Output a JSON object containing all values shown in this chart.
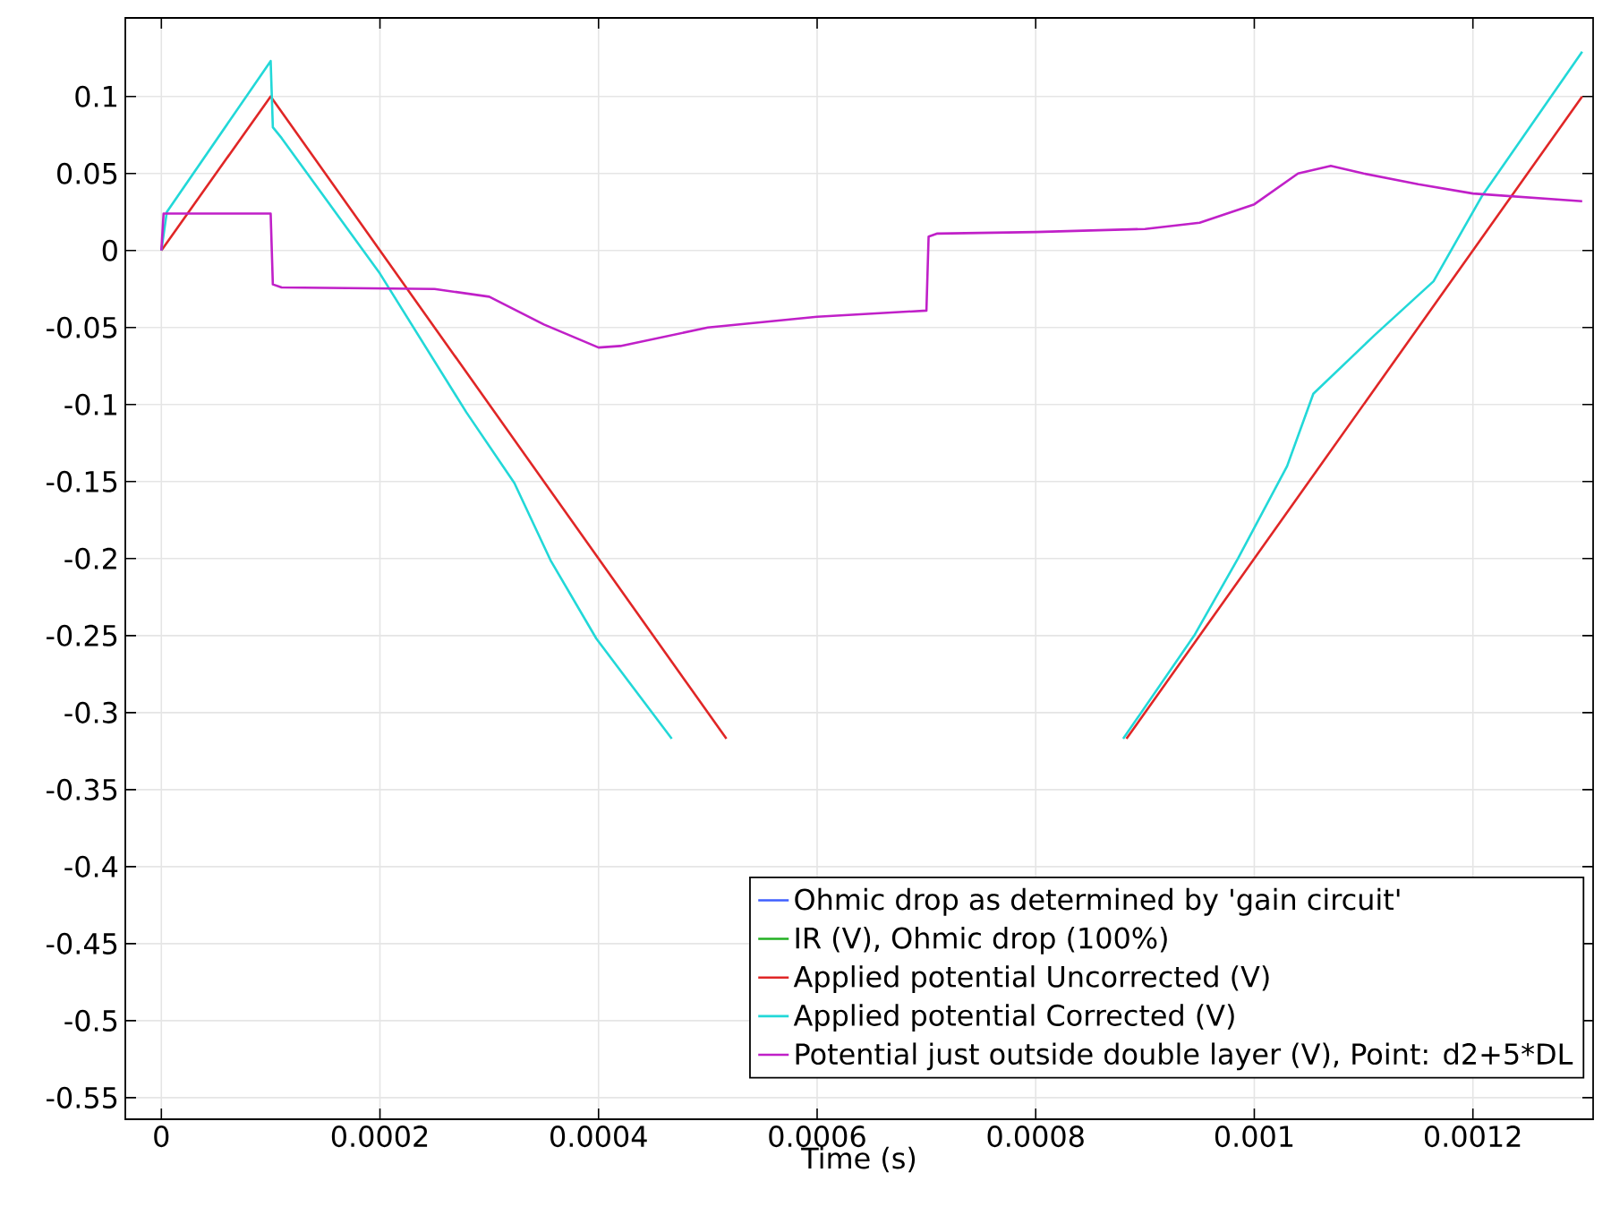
{
  "chart_data": {
    "type": "line",
    "xlabel": "Time (s)",
    "xlim": [
      -3.3e-05,
      0.00131
    ],
    "ylim": [
      -0.564,
      0.151
    ],
    "xticks": [
      0,
      0.0002,
      0.0004,
      0.0006,
      0.0008,
      0.001,
      0.0012
    ],
    "yticks": [
      -0.55,
      -0.5,
      -0.45,
      -0.4,
      -0.35,
      -0.3,
      -0.25,
      -0.2,
      -0.15,
      -0.1,
      -0.05,
      0,
      0.05,
      0.1
    ],
    "grid": true,
    "legend": "bottom right",
    "series": [
      {
        "name": "Ohmic drop as determined by 'gain circuit'",
        "color": "#3f5fff",
        "values": [
          null
        ]
      },
      {
        "name": "IR (V), Ohmic drop (100%)",
        "color": "#22b022",
        "values": [
          null
        ]
      },
      {
        "name": "Applied potential Uncorrected (V)",
        "color": "#e02626",
        "x": [
          0,
          0.0001,
          0.000517,
          0.0006,
          0.000883,
          0.0013
        ],
        "values": [
          0,
          0.1,
          -0.317,
          null,
          -0.317,
          0.1
        ]
      },
      {
        "name": "Applied potential Corrected (V)",
        "color": "#22d8d8",
        "x": [
          0,
          5e-06,
          0.0001,
          0.000102,
          0.00011,
          0.0002,
          0.000279,
          0.000323,
          0.000356,
          0.000398,
          0.000467,
          0.0006,
          0.00088,
          0.000945,
          0.000985,
          0.00103,
          0.001054,
          0.00111,
          0.001164,
          0.001208,
          0.0013
        ],
        "values": [
          0,
          0.025,
          0.123,
          0.08,
          0.073,
          -0.015,
          -0.105,
          -0.151,
          -0.201,
          -0.252,
          -0.317,
          null,
          -0.317,
          -0.25,
          -0.2,
          -0.14,
          -0.093,
          -0.055,
          -0.02,
          0.035,
          0.129
        ]
      },
      {
        "name": "Potential just outside double layer (V), Point: d2+5*DL",
        "color": "#c020c8",
        "x": [
          0,
          2e-06,
          0.0001,
          0.000102,
          0.00011,
          0.00025,
          0.0003,
          0.00035,
          0.0004,
          0.00042,
          0.0005,
          0.0006,
          0.0007,
          0.000702,
          0.00071,
          0.0008,
          0.0009,
          0.00095,
          0.001,
          0.00104,
          0.00107,
          0.0011,
          0.00115,
          0.0012,
          0.0013
        ],
        "values": [
          0,
          0.024,
          0.024,
          -0.022,
          -0.024,
          -0.025,
          -0.03,
          -0.048,
          -0.063,
          -0.062,
          -0.05,
          -0.043,
          -0.039,
          0.009,
          0.011,
          0.012,
          0.014,
          0.018,
          0.03,
          0.05,
          0.055,
          0.05,
          0.043,
          0.037,
          0.032
        ]
      }
    ]
  }
}
